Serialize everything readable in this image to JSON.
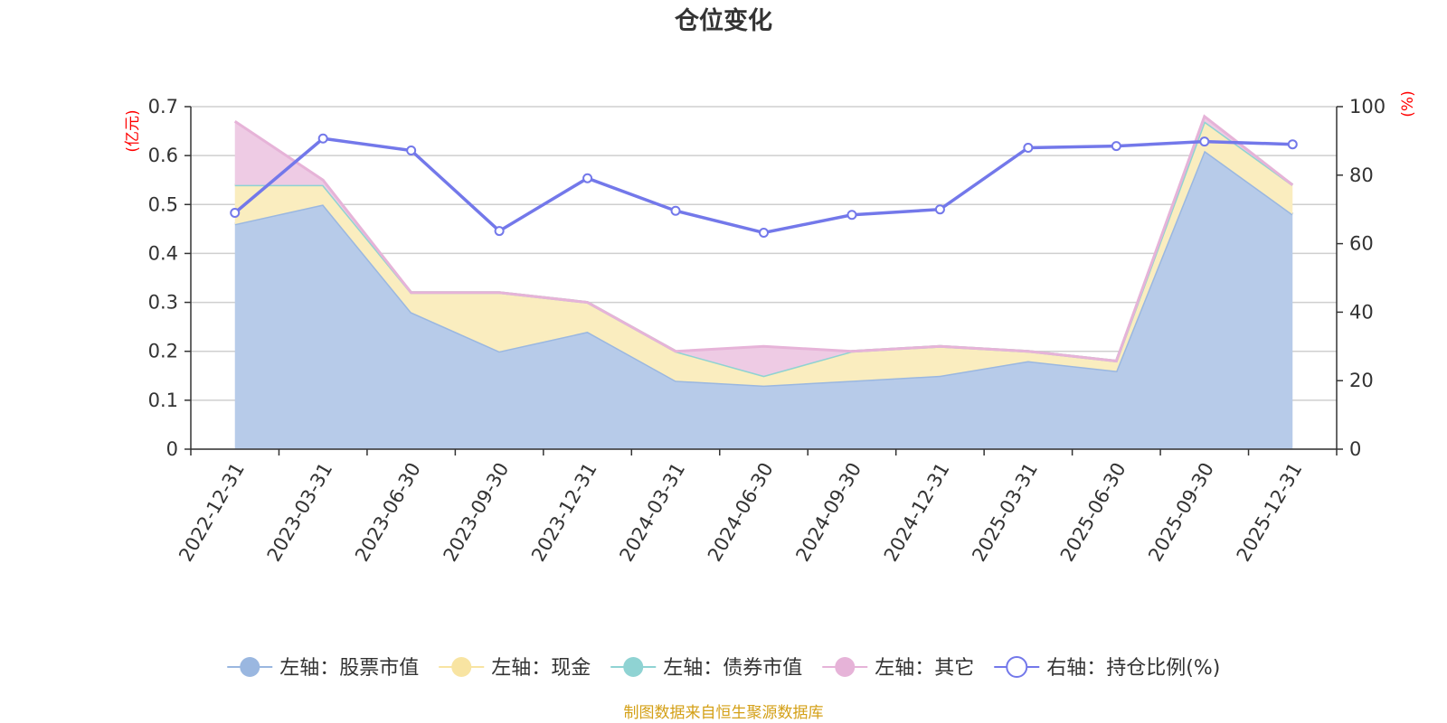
{
  "chart_data": {
    "type": "area",
    "title": "仓位变化",
    "categories": [
      "2022-12-31",
      "2023-03-31",
      "2023-06-30",
      "2023-09-30",
      "2023-12-31",
      "2024-03-31",
      "2024-06-30",
      "2024-09-30",
      "2024-12-31",
      "2025-03-31",
      "2025-06-30",
      "2025-09-30",
      "2025-12-31"
    ],
    "left_axis": {
      "unit": "(亿元)",
      "min": 0,
      "max": 0.7,
      "ticks": [
        "0",
        "0.1",
        "0.2",
        "0.3",
        "0.4",
        "0.5",
        "0.6",
        "0.7"
      ]
    },
    "right_axis": {
      "unit": "(%)",
      "min": 0,
      "max": 100,
      "ticks": [
        "0",
        "20",
        "40",
        "60",
        "80",
        "100"
      ]
    },
    "series": [
      {
        "name": "左轴：股票市值",
        "axis": "left",
        "stacked": true,
        "color": "#9ab7e0",
        "fill": "#b7cbe9",
        "values": [
          0.46,
          0.5,
          0.28,
          0.2,
          0.24,
          0.14,
          0.13,
          0.14,
          0.15,
          0.18,
          0.16,
          0.61,
          0.48
        ]
      },
      {
        "name": "左轴：现金",
        "axis": "left",
        "stacked": true,
        "color": "#f8e4a2",
        "fill": "#faedbf",
        "values": [
          0.08,
          0.04,
          0.04,
          0.12,
          0.06,
          0.06,
          0.02,
          0.06,
          0.06,
          0.02,
          0.02,
          0.06,
          0.06
        ]
      },
      {
        "name": "左轴：债券市值",
        "axis": "left",
        "stacked": true,
        "color": "#8fd3d3",
        "fill": "#b9e4e4",
        "values": [
          0,
          0,
          0,
          0,
          0,
          0,
          0,
          0,
          0,
          0,
          0,
          0,
          0
        ]
      },
      {
        "name": "左轴：其它",
        "axis": "left",
        "stacked": true,
        "color": "#e6b3d8",
        "fill": "#eecbe4",
        "values": [
          0.13,
          0.01,
          0,
          0,
          0,
          0,
          0.06,
          0,
          0,
          0,
          0,
          0.01,
          0
        ]
      },
      {
        "name": "右轴：持仓比例(%)",
        "axis": "right",
        "stacked": false,
        "color": "#7378ea",
        "values": [
          69.0,
          90.7,
          87.2,
          63.7,
          79.1,
          69.6,
          63.2,
          68.4,
          70.0,
          88.0,
          88.5,
          89.8,
          89.0
        ]
      }
    ],
    "source_note": "制图数据来自恒生聚源数据库"
  }
}
